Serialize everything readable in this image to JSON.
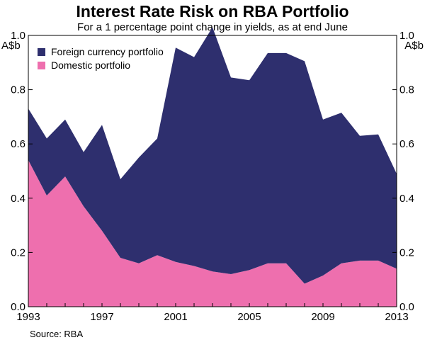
{
  "chart_data": {
    "type": "area",
    "stacked": true,
    "title": "Interest Rate Risk on RBA Portfolio",
    "subtitle": "For a 1 percentage point change in yields, as at end June",
    "ylabel_left": "A$b",
    "ylabel_right": "A$b",
    "ylim": [
      0,
      1.0
    ],
    "y_ticks": [
      "0.0",
      "0.2",
      "0.4",
      "0.6",
      "0.8",
      "1.0"
    ],
    "xlim": [
      1993,
      2013
    ],
    "x_ticks": [
      "1993",
      "1997",
      "2001",
      "2005",
      "2009",
      "2013"
    ],
    "legend_position": "top-left",
    "x": [
      1993,
      1994,
      1995,
      1996,
      1997,
      1998,
      1999,
      2000,
      2001,
      2002,
      2003,
      2004,
      2005,
      2006,
      2007,
      2008,
      2009,
      2010,
      2011,
      2012,
      2013
    ],
    "series": [
      {
        "name": "Domestic portfolio",
        "color": "#ee6fae",
        "values": [
          0.54,
          0.41,
          0.48,
          0.37,
          0.28,
          0.18,
          0.16,
          0.19,
          0.165,
          0.15,
          0.13,
          0.12,
          0.135,
          0.16,
          0.16,
          0.085,
          0.115,
          0.16,
          0.17,
          0.17,
          0.14
        ]
      },
      {
        "name": "Foreign currency portfolio",
        "color": "#2e2f6e",
        "values": [
          0.19,
          0.21,
          0.21,
          0.2,
          0.39,
          0.29,
          0.39,
          0.43,
          0.79,
          0.77,
          0.9,
          0.725,
          0.7,
          0.775,
          0.775,
          0.82,
          0.575,
          0.555,
          0.46,
          0.465,
          0.35
        ]
      }
    ],
    "source": "Source: RBA"
  }
}
